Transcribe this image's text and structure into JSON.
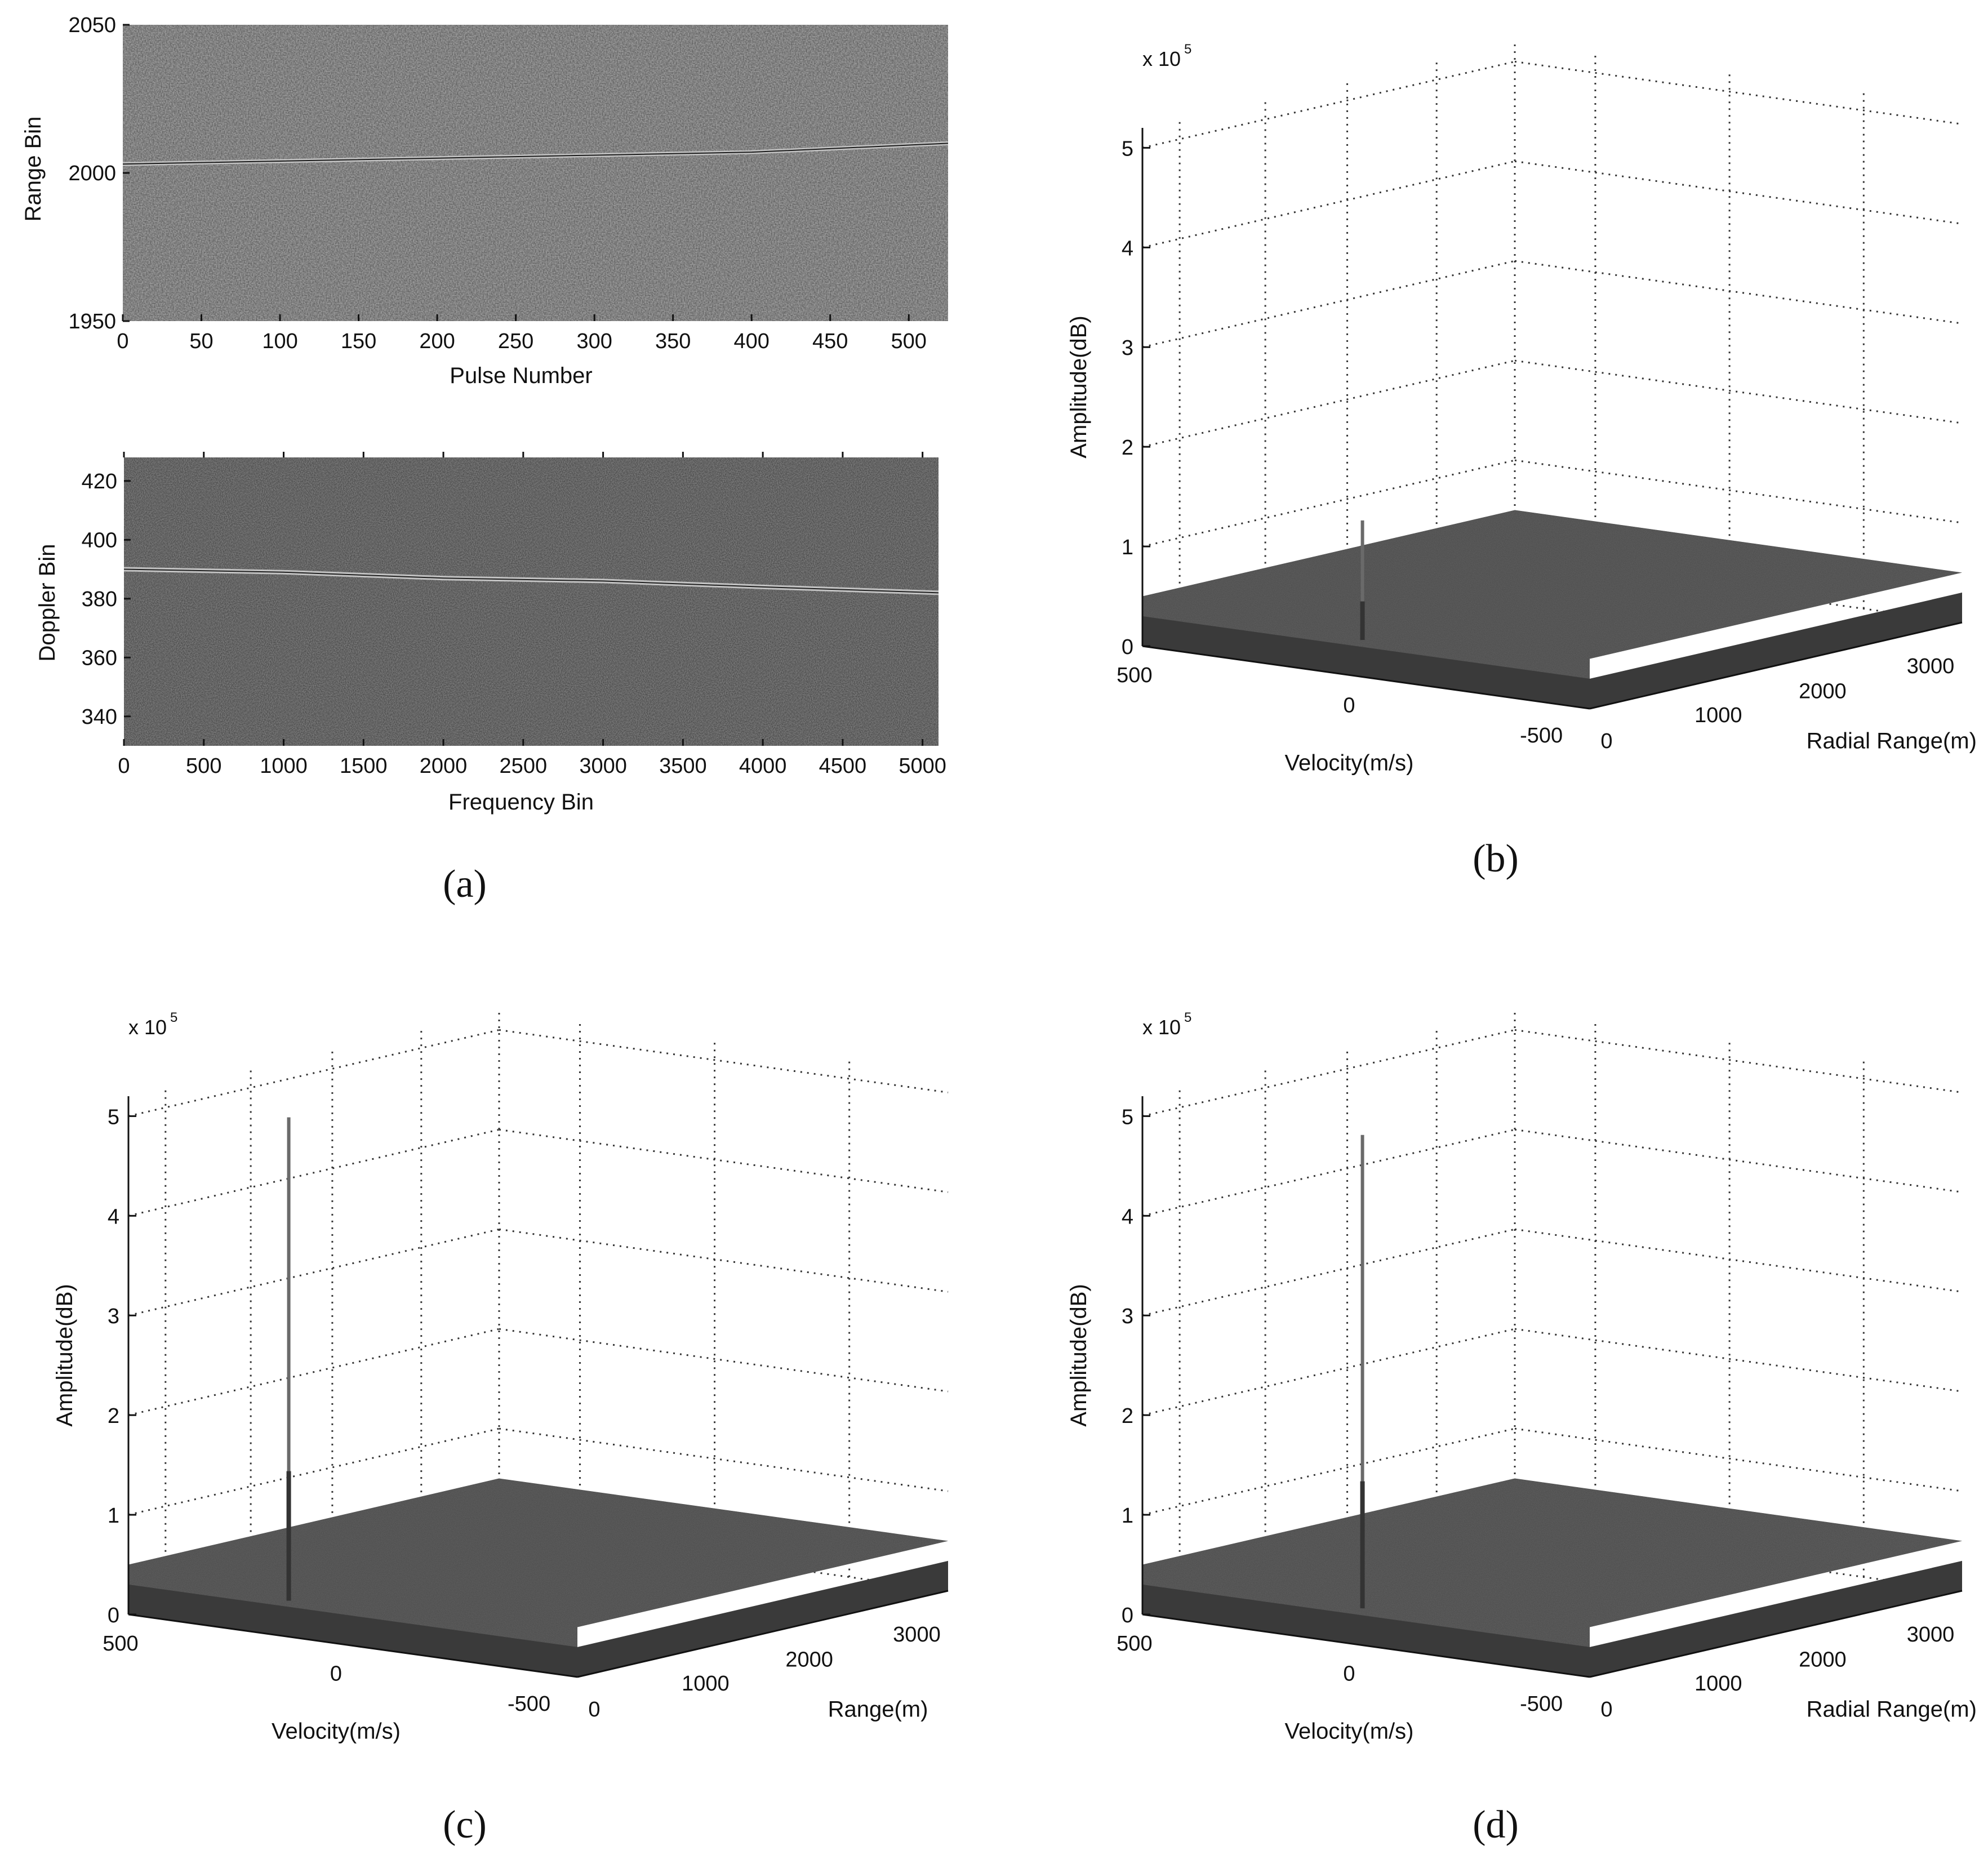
{
  "chart_data": [
    {
      "id": "a_top",
      "type": "heatmap",
      "xlabel": "Pulse Number",
      "ylabel": "Range Bin",
      "xlim": [
        0,
        525
      ],
      "ylim": [
        1950,
        2050
      ],
      "xticks": [
        "0",
        "50",
        "100",
        "150",
        "200",
        "250",
        "300",
        "350",
        "400",
        "450",
        "500"
      ],
      "yticks": [
        "1950",
        "2000",
        "2050"
      ],
      "track": {
        "x": [
          0,
          100,
          200,
          300,
          400,
          525
        ],
        "y": [
          2003,
          2004,
          2005,
          2006,
          2007,
          2010
        ]
      },
      "colormap": "gray"
    },
    {
      "id": "a_bottom",
      "type": "heatmap",
      "xlabel": "Frequency Bin",
      "ylabel": "Doppler Bin",
      "xlim": [
        0,
        5100
      ],
      "ylim": [
        330,
        428
      ],
      "xticks": [
        "0",
        "500",
        "1000",
        "1500",
        "2000",
        "2500",
        "3000",
        "3500",
        "4000",
        "4500",
        "5000"
      ],
      "yticks": [
        "340",
        "360",
        "380",
        "400",
        "420"
      ],
      "track": {
        "x": [
          0,
          1000,
          2000,
          3000,
          4000,
          5100
        ],
        "y": [
          390,
          389,
          387,
          386,
          384,
          382
        ]
      },
      "colormap": "gray"
    },
    {
      "id": "b",
      "type": "surface3d",
      "zlabel": "Amplitude(dB)",
      "xlabel": "Velocity(m/s)",
      "ylabel": "Radial Range(m)",
      "zscale": "x 10",
      "zscale_exp": "5",
      "zticks": [
        "0",
        "1",
        "2",
        "3",
        "4",
        "5"
      ],
      "velocity_ticks": [
        "500",
        "0",
        "-500"
      ],
      "range_ticks": [
        "0",
        "1000",
        "2000",
        "3000"
      ],
      "zlim": [
        0,
        5.2
      ],
      "peak": {
        "velocity": 20,
        "range": 50,
        "amplitude": 1.55
      },
      "noise_floor": 0.5
    },
    {
      "id": "c",
      "type": "surface3d",
      "zlabel": "Amplitude(dB)",
      "xlabel": "Velocity(m/s)",
      "ylabel": "Range(m)",
      "zscale": "x 10",
      "zscale_exp": "5",
      "zticks": [
        "0",
        "1",
        "2",
        "3",
        "4",
        "5"
      ],
      "velocity_ticks": [
        "500",
        "0",
        "-500"
      ],
      "range_ticks": [
        "0",
        "1000",
        "2000",
        "3000"
      ],
      "zlim": [
        0,
        5.2
      ],
      "peak": {
        "velocity": 150,
        "range": 30,
        "amplitude": 5.2
      },
      "noise_floor": 0.5
    },
    {
      "id": "d",
      "type": "surface3d",
      "zlabel": "Amplitude(dB)",
      "xlabel": "Velocity(m/s)",
      "ylabel": "Radial Range(m)",
      "zscale": "x 10",
      "zscale_exp": "5",
      "zticks": [
        "0",
        "1",
        "2",
        "3",
        "4",
        "5"
      ],
      "velocity_ticks": [
        "500",
        "0",
        "-500"
      ],
      "range_ticks": [
        "0",
        "1000",
        "2000",
        "3000"
      ],
      "zlim": [
        0,
        5.2
      ],
      "peak": {
        "velocity": 20,
        "range": 50,
        "amplitude": 5.1
      },
      "noise_floor": 0.5
    }
  ],
  "panel_labels": [
    "(a)",
    "(b)",
    "(c)",
    "(d)"
  ]
}
